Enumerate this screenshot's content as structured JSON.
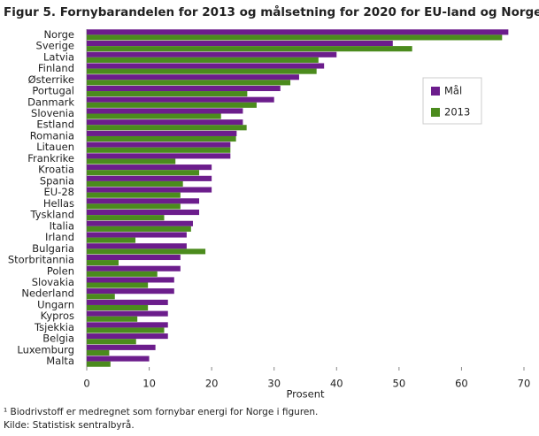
{
  "chart_data": {
    "type": "hbar",
    "title": "Figur 5. Fornybarandelen for 2013 og målsetning for 2020 for EU-land og Norge¹",
    "categories": [
      "Norge",
      "Sverige",
      "Latvia",
      "Finland",
      "Østerrike",
      "Portugal",
      "Danmark",
      "Slovenia",
      "Estland",
      "Romania",
      "Litauen",
      "Frankrike",
      "Kroatia",
      "Spania",
      "EU-28",
      "Hellas",
      "Tyskland",
      "Italia",
      "Irland",
      "Bulgaria",
      "Storbritannia",
      "Polen",
      "Slovakia",
      "Nederland",
      "Ungarn",
      "Kypros",
      "Tsjekkia",
      "Belgia",
      "Luxemburg",
      "Malta"
    ],
    "series": [
      {
        "name": "Mål",
        "color": "#6c1d8c",
        "values": [
          67.5,
          49,
          40,
          38,
          34,
          31,
          30,
          25,
          25,
          24,
          23,
          23,
          20,
          20,
          20,
          18,
          18,
          17,
          16,
          16,
          15,
          15,
          14,
          14,
          13,
          13,
          13,
          13,
          11,
          10
        ]
      },
      {
        "name": "2013",
        "color": "#4b8b1d",
        "values": [
          66.5,
          52.1,
          37.1,
          36.8,
          32.6,
          25.7,
          27.2,
          21.5,
          25.6,
          23.9,
          23,
          14.2,
          18,
          15.4,
          15,
          15,
          12.4,
          16.7,
          7.8,
          19,
          5.1,
          11.3,
          9.8,
          4.5,
          9.8,
          8.1,
          12.4,
          7.9,
          3.6,
          3.8
        ]
      }
    ],
    "xlabel": "Prosent",
    "xlim": [
      0,
      70
    ],
    "xticks": [
      0,
      10,
      20,
      30,
      40,
      50,
      60,
      70
    ],
    "legend": "upper right",
    "notes": [
      "¹ Biodrivstoff er medregnet som fornybar energi for Norge i figuren.",
      "Kilde: Statistisk sentralbyrå."
    ]
  }
}
